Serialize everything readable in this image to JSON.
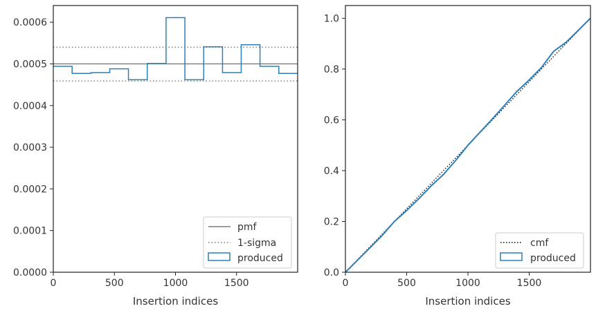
{
  "colors": {
    "produced": "#2c7fb8",
    "pmf": "#7a7a7a",
    "sigma": "#7a7a7a",
    "cmf": "#000000",
    "axes": "#222222",
    "text": "#333333",
    "legend_border": "#cccccc"
  },
  "chart_data": [
    {
      "type": "line",
      "drawstyle": "steps",
      "xlabel": "Insertion indices",
      "ylabel": "",
      "xlim": [
        0,
        2000
      ],
      "ylim": [
        0,
        0.00064
      ],
      "x_ticks": [
        0,
        500,
        1000,
        1500
      ],
      "x_tick_labels": [
        "0",
        "500",
        "1000",
        "1500"
      ],
      "y_ticks": [
        0,
        0.0001,
        0.0002,
        0.0003,
        0.0004,
        0.0005,
        0.0006
      ],
      "y_tick_labels": [
        "0.0000",
        "0.0001",
        "0.0002",
        "0.0003",
        "0.0004",
        "0.0005",
        "0.0006"
      ],
      "grid": false,
      "legend_position": "lower right",
      "hlines": [
        {
          "name": "pmf",
          "y": 0.0005,
          "style": "solid"
        },
        {
          "name": "1-sigma",
          "y": 0.00054,
          "style": "dotted"
        },
        {
          "name": "1-sigma",
          "y": 0.000459,
          "style": "dotted"
        }
      ],
      "series": [
        {
          "name": "produced",
          "bin_edges": [
            0,
            154,
            308,
            462,
            615,
            769,
            923,
            1077,
            1231,
            1385,
            1538,
            1692,
            1846,
            2000
          ],
          "values": [
            0.000494,
            0.000477,
            0.000479,
            0.000488,
            0.000462,
            0.000501,
            0.000611,
            0.000462,
            0.000541,
            0.000479,
            0.000546,
            0.000494,
            0.000477
          ]
        }
      ],
      "legend": [
        {
          "label": "pmf",
          "kind": "solid-line"
        },
        {
          "label": "1-sigma",
          "kind": "dotted-line"
        },
        {
          "label": "produced",
          "kind": "box"
        }
      ]
    },
    {
      "type": "line",
      "xlabel": "Insertion indices",
      "ylabel": "",
      "xlim": [
        0,
        2000
      ],
      "ylim": [
        0,
        1.05
      ],
      "x_ticks": [
        0,
        500,
        1000,
        1500
      ],
      "x_tick_labels": [
        "0",
        "500",
        "1000",
        "1500"
      ],
      "y_ticks": [
        0,
        0.2,
        0.4,
        0.6,
        0.8,
        1.0
      ],
      "y_tick_labels": [
        "0.0",
        "0.2",
        "0.4",
        "0.6",
        "0.8",
        "1.0"
      ],
      "grid": false,
      "legend_position": "lower right",
      "series": [
        {
          "name": "cmf",
          "style": "dotted",
          "x": [
            0,
            2000
          ],
          "y": [
            0,
            1.0
          ]
        },
        {
          "name": "produced",
          "style": "solid",
          "x": [
            0,
            100,
            200,
            300,
            400,
            500,
            600,
            700,
            800,
            900,
            1000,
            1100,
            1200,
            1300,
            1400,
            1500,
            1600,
            1700,
            1800,
            1900,
            2000
          ],
          "y": [
            0,
            0.048,
            0.096,
            0.145,
            0.2,
            0.243,
            0.29,
            0.34,
            0.385,
            0.44,
            0.5,
            0.552,
            0.604,
            0.658,
            0.712,
            0.757,
            0.806,
            0.87,
            0.905,
            0.952,
            1.0
          ]
        }
      ],
      "legend": [
        {
          "label": "cmf",
          "kind": "dotted-line"
        },
        {
          "label": "produced",
          "kind": "box"
        }
      ]
    }
  ]
}
